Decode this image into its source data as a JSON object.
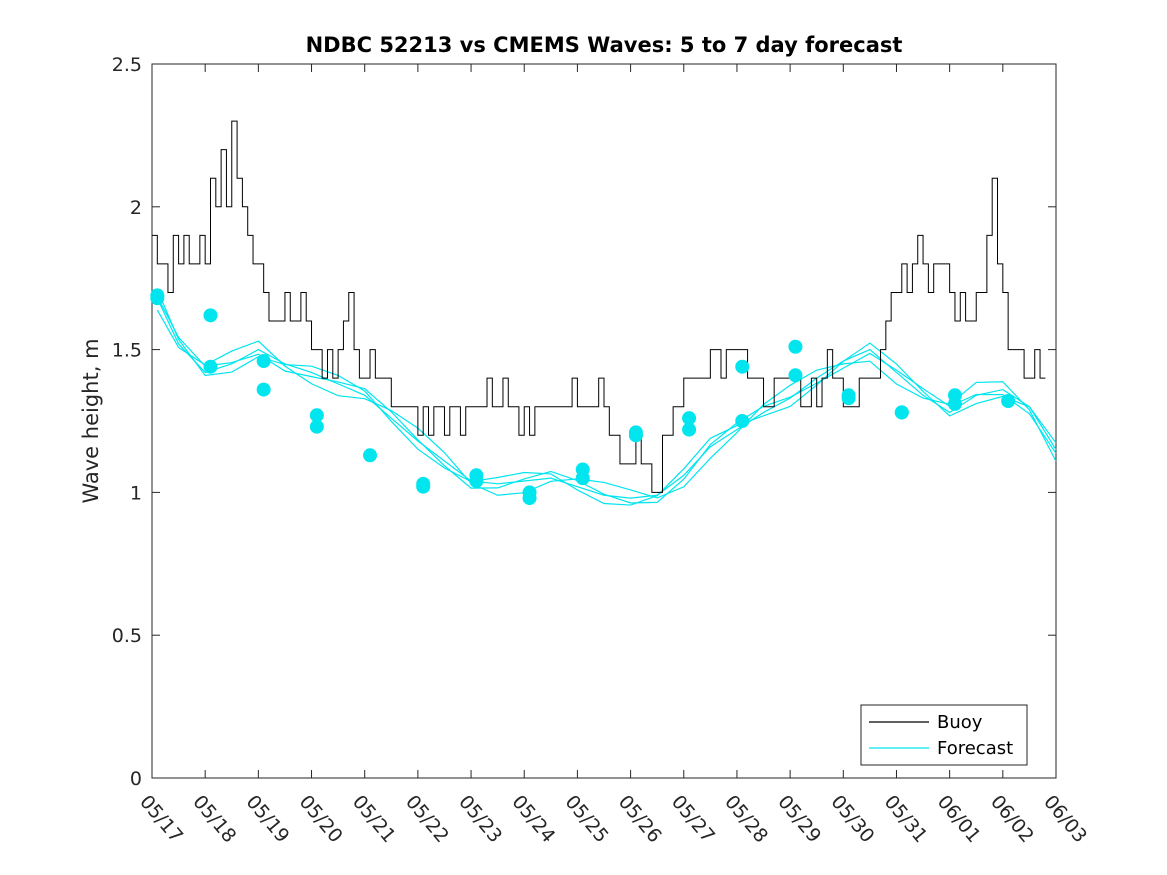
{
  "chart_data": {
    "type": "line",
    "title": "NDBC 52213 vs CMEMS Waves: 5 to 7 day forecast",
    "xlabel": "",
    "ylabel": "Wave height, m",
    "xlim": [
      "05/17",
      "06/03"
    ],
    "ylim": [
      0,
      2.5
    ],
    "yticks": [
      0,
      0.5,
      1,
      1.5,
      2,
      2.5
    ],
    "xticks": [
      "05/17",
      "05/18",
      "05/19",
      "05/20",
      "05/21",
      "05/22",
      "05/23",
      "05/24",
      "05/25",
      "05/26",
      "05/27",
      "05/28",
      "05/29",
      "05/30",
      "05/31",
      "06/01",
      "06/02",
      "06/03"
    ],
    "grid": false,
    "legend_position": "bottom-right",
    "colors": {
      "buoy": "#000000",
      "forecast": "#00e5ee"
    },
    "series": [
      {
        "name": "Buoy",
        "x_days_from_0517": [
          0.0,
          0.1,
          0.2,
          0.3,
          0.4,
          0.5,
          0.6,
          0.7,
          0.8,
          0.9,
          1.0,
          1.1,
          1.2,
          1.3,
          1.4,
          1.5,
          1.6,
          1.7,
          1.8,
          1.9,
          2.0,
          2.1,
          2.2,
          2.3,
          2.4,
          2.5,
          2.6,
          2.7,
          2.8,
          2.9,
          3.0,
          3.1,
          3.2,
          3.3,
          3.4,
          3.5,
          3.6,
          3.7,
          3.8,
          3.9,
          4.0,
          4.1,
          4.2,
          4.3,
          4.4,
          4.5,
          4.6,
          4.7,
          4.8,
          4.9,
          5.0,
          5.1,
          5.2,
          5.3,
          5.4,
          5.5,
          5.6,
          5.7,
          5.8,
          5.9,
          6.0,
          6.1,
          6.2,
          6.3,
          6.4,
          6.5,
          6.6,
          6.7,
          6.8,
          6.9,
          7.0,
          7.1,
          7.2,
          7.3,
          7.4,
          7.5,
          7.6,
          7.7,
          7.8,
          7.9,
          8.0,
          8.1,
          8.2,
          8.3,
          8.4,
          8.5,
          8.6,
          8.7,
          8.8,
          8.9,
          9.0,
          9.1,
          9.2,
          9.3,
          9.4,
          9.5,
          9.6,
          9.7,
          9.8,
          9.9,
          10.0,
          10.1,
          10.2,
          10.3,
          10.4,
          10.5,
          10.6,
          10.7,
          10.8,
          10.9,
          11.0,
          11.1,
          11.2,
          11.3,
          11.4,
          11.5,
          11.6,
          11.7,
          11.8,
          11.9,
          12.0,
          12.1,
          12.2,
          12.3,
          12.4,
          12.5,
          12.6,
          12.7,
          12.8,
          12.9,
          13.0,
          13.1,
          13.2,
          13.3,
          13.4,
          13.5,
          13.6,
          13.7,
          13.8,
          13.9,
          14.0,
          14.1,
          14.2,
          14.3,
          14.4,
          14.5,
          14.6,
          14.7,
          14.8,
          14.9,
          15.0,
          15.1,
          15.2,
          15.3,
          15.4,
          15.5,
          15.6,
          15.7,
          15.8,
          15.9,
          16.0,
          16.1,
          16.2,
          16.3,
          16.4,
          16.5,
          16.6,
          16.7,
          16.8
        ],
        "values": [
          1.9,
          1.8,
          1.8,
          1.7,
          1.9,
          1.8,
          1.9,
          1.8,
          1.8,
          1.9,
          1.8,
          2.1,
          2.0,
          2.2,
          2.0,
          2.3,
          2.1,
          2.0,
          1.9,
          1.8,
          1.8,
          1.7,
          1.6,
          1.6,
          1.6,
          1.7,
          1.6,
          1.6,
          1.7,
          1.6,
          1.5,
          1.5,
          1.4,
          1.5,
          1.4,
          1.5,
          1.6,
          1.7,
          1.5,
          1.4,
          1.4,
          1.5,
          1.4,
          1.4,
          1.4,
          1.3,
          1.3,
          1.3,
          1.3,
          1.3,
          1.2,
          1.3,
          1.2,
          1.3,
          1.3,
          1.2,
          1.3,
          1.3,
          1.2,
          1.3,
          1.3,
          1.3,
          1.3,
          1.4,
          1.3,
          1.3,
          1.4,
          1.3,
          1.3,
          1.2,
          1.3,
          1.2,
          1.3,
          1.3,
          1.3,
          1.3,
          1.3,
          1.3,
          1.3,
          1.4,
          1.3,
          1.3,
          1.3,
          1.3,
          1.4,
          1.3,
          1.2,
          1.2,
          1.1,
          1.1,
          1.1,
          1.2,
          1.1,
          1.1,
          1.0,
          1.0,
          1.2,
          1.2,
          1.3,
          1.3,
          1.4,
          1.4,
          1.4,
          1.4,
          1.4,
          1.5,
          1.5,
          1.4,
          1.5,
          1.5,
          1.5,
          1.5,
          1.4,
          1.4,
          1.4,
          1.3,
          1.3,
          1.4,
          1.4,
          1.4,
          1.4,
          1.4,
          1.3,
          1.3,
          1.4,
          1.3,
          1.4,
          1.5,
          1.4,
          1.4,
          1.3,
          1.3,
          1.3,
          1.4,
          1.4,
          1.4,
          1.4,
          1.5,
          1.6,
          1.7,
          1.7,
          1.8,
          1.7,
          1.8,
          1.9,
          1.8,
          1.7,
          1.8,
          1.8,
          1.8,
          1.7,
          1.6,
          1.7,
          1.6,
          1.6,
          1.7,
          1.7,
          1.9,
          2.1,
          1.8,
          1.7,
          1.5,
          1.5,
          1.5,
          1.4,
          1.4,
          1.5,
          1.4,
          1.4,
          1.4,
          1.3,
          1.4,
          1.5,
          1.5,
          1.4,
          1.4,
          1.4,
          1.5,
          1.3,
          1.4,
          1.4,
          1.5
        ]
      },
      {
        "name": "Forecast",
        "x_days_from_0517": [
          0.1,
          0.5,
          1.0,
          1.5,
          2.0,
          2.5,
          3.0,
          3.5,
          4.0,
          4.5,
          5.0,
          5.5,
          6.0,
          6.5,
          7.0,
          7.5,
          8.0,
          8.5,
          9.0,
          9.5,
          10.0,
          10.5,
          11.0,
          11.5,
          12.0,
          12.5,
          13.0,
          13.5,
          14.0,
          14.5,
          15.0,
          15.5,
          16.0,
          16.5,
          17.0
        ],
        "values": [
          1.68,
          1.52,
          1.42,
          1.45,
          1.5,
          1.45,
          1.42,
          1.38,
          1.34,
          1.26,
          1.18,
          1.11,
          1.04,
          1.03,
          1.04,
          1.05,
          1.02,
          0.99,
          0.98,
          0.99,
          1.06,
          1.16,
          1.22,
          1.28,
          1.33,
          1.4,
          1.46,
          1.5,
          1.42,
          1.34,
          1.28,
          1.34,
          1.36,
          1.3,
          1.15
        ]
      }
    ],
    "forecast_start_markers": [
      {
        "date": "05/17",
        "values": [
          1.69,
          1.68
        ]
      },
      {
        "date": "05/18",
        "values": [
          1.62,
          1.44
        ]
      },
      {
        "date": "05/19",
        "values": [
          1.46,
          1.36
        ]
      },
      {
        "date": "05/20",
        "values": [
          1.27,
          1.23
        ]
      },
      {
        "date": "05/21",
        "values": [
          1.13
        ]
      },
      {
        "date": "05/22",
        "values": [
          1.03,
          1.02
        ]
      },
      {
        "date": "05/23",
        "values": [
          1.06,
          1.04
        ]
      },
      {
        "date": "05/24",
        "values": [
          1.0,
          0.98
        ]
      },
      {
        "date": "05/25",
        "values": [
          1.08,
          1.05
        ]
      },
      {
        "date": "05/26",
        "values": [
          1.21,
          1.2
        ]
      },
      {
        "date": "05/27",
        "values": [
          1.26,
          1.22
        ]
      },
      {
        "date": "05/28",
        "values": [
          1.44,
          1.25
        ]
      },
      {
        "date": "05/29",
        "values": [
          1.51,
          1.41
        ]
      },
      {
        "date": "05/30",
        "values": [
          1.34,
          1.33
        ]
      },
      {
        "date": "05/31",
        "values": [
          1.28,
          1.28
        ]
      },
      {
        "date": "06/01",
        "values": [
          1.34,
          1.31
        ]
      },
      {
        "date": "06/02",
        "values": [
          1.32
        ]
      }
    ]
  }
}
